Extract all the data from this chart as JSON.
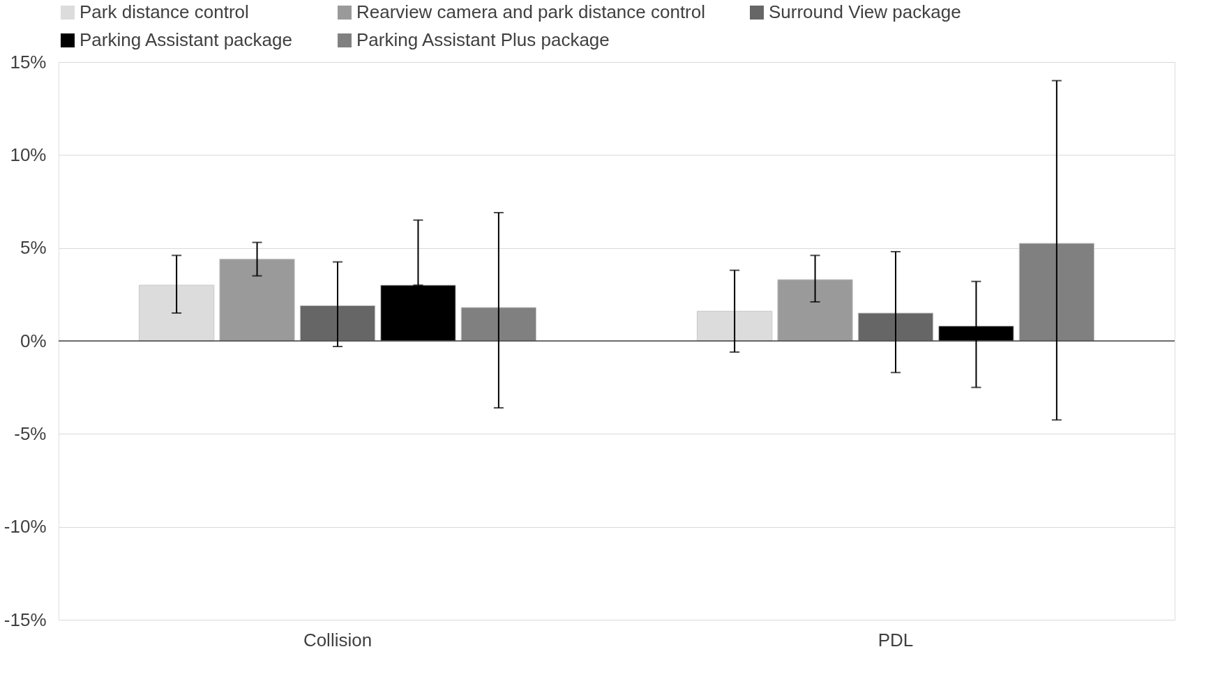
{
  "chart_data": {
    "type": "bar",
    "categories": [
      "Collision",
      "PDL"
    ],
    "series": [
      {
        "name": "Park distance control",
        "color": "#dcdcdc",
        "values": [
          3.0,
          1.6
        ],
        "errors": [
          [
            1.5,
            4.6
          ],
          [
            -0.6,
            3.8
          ]
        ]
      },
      {
        "name": "Rearview camera and park distance control",
        "color": "#9a9a9a",
        "values": [
          4.4,
          3.3
        ],
        "errors": [
          [
            3.5,
            5.3
          ],
          [
            2.1,
            4.6
          ]
        ]
      },
      {
        "name": "Surround View package",
        "color": "#666666",
        "values": [
          1.9,
          1.5
        ],
        "errors": [
          [
            -0.3,
            4.25
          ],
          [
            -1.7,
            4.8
          ]
        ]
      },
      {
        "name": "Parking Assistant package",
        "color": "#000000",
        "values": [
          3.0,
          0.8
        ],
        "errors": [
          [
            3.0,
            6.5
          ],
          [
            -2.5,
            3.2
          ]
        ]
      },
      {
        "name": "Parking Assistant Plus package",
        "color": "#808080",
        "values": [
          1.8,
          5.25
        ],
        "errors": [
          [
            -3.6,
            6.9
          ],
          [
            -4.25,
            14.0
          ]
        ]
      }
    ],
    "ylim": [
      -15,
      15
    ],
    "yticks": [
      {
        "value": -15,
        "label": "-15%"
      },
      {
        "value": -10,
        "label": "-10%"
      },
      {
        "value": -5,
        "label": "-5%"
      },
      {
        "value": 0,
        "label": "0%"
      },
      {
        "value": 5,
        "label": "5%"
      },
      {
        "value": 10,
        "label": "10%"
      },
      {
        "value": 15,
        "label": "15%"
      }
    ],
    "grid": "y",
    "legend": "top"
  }
}
